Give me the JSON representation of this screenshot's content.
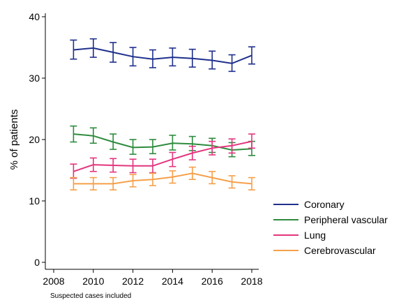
{
  "chart_data": {
    "type": "line",
    "ylabel": "% of patients",
    "xlabel": "",
    "xlim": [
      2008,
      2018
    ],
    "ylim": [
      0,
      40
    ],
    "xticks": [
      2008,
      2010,
      2012,
      2014,
      2016,
      2018
    ],
    "yticks": [
      0,
      10,
      20,
      30,
      40
    ],
    "x": [
      2009,
      2010,
      2011,
      2012,
      2013,
      2014,
      2015,
      2016,
      2017,
      2018
    ],
    "grid": false,
    "legend_position": "right",
    "error_bars": true,
    "series": [
      {
        "name": "Coronary",
        "color": "#1f2f8c",
        "values": [
          34.6,
          34.9,
          34.2,
          33.5,
          33.1,
          33.4,
          33.2,
          32.9,
          32.4,
          33.7
        ],
        "lower": [
          33.1,
          33.4,
          32.6,
          32.0,
          31.7,
          32.0,
          31.8,
          31.5,
          31.1,
          32.3
        ],
        "upper": [
          36.2,
          36.4,
          35.8,
          35.0,
          34.6,
          34.9,
          34.7,
          34.4,
          33.8,
          35.1
        ]
      },
      {
        "name": "Peripheral vascular",
        "color": "#2e8b3e",
        "values": [
          20.9,
          20.6,
          19.6,
          18.7,
          18.8,
          19.4,
          19.3,
          19.0,
          18.3,
          18.5
        ],
        "lower": [
          19.6,
          19.4,
          18.4,
          17.6,
          17.7,
          18.3,
          18.2,
          17.9,
          17.2,
          17.4
        ],
        "upper": [
          22.2,
          21.9,
          20.9,
          20.0,
          20.0,
          20.7,
          20.5,
          20.2,
          19.5,
          19.7
        ]
      },
      {
        "name": "Lung",
        "color": "#e3357d",
        "values": [
          14.8,
          15.9,
          15.8,
          15.7,
          15.7,
          16.8,
          17.8,
          18.6,
          19.0,
          19.7
        ],
        "lower": [
          13.7,
          14.8,
          14.7,
          14.6,
          14.6,
          15.6,
          16.7,
          17.5,
          17.8,
          18.6
        ],
        "upper": [
          16.0,
          17.0,
          16.9,
          16.8,
          16.8,
          17.9,
          18.9,
          19.7,
          20.1,
          20.9
        ]
      },
      {
        "name": "Cerebrovascular",
        "color": "#f5a04a",
        "values": [
          12.8,
          12.8,
          12.8,
          13.3,
          13.5,
          13.9,
          14.5,
          13.8,
          13.1,
          12.8
        ],
        "lower": [
          11.8,
          11.8,
          11.8,
          12.3,
          12.5,
          12.9,
          13.5,
          12.8,
          12.1,
          11.8
        ],
        "upper": [
          13.8,
          13.8,
          13.8,
          14.3,
          14.5,
          14.9,
          15.5,
          14.8,
          14.1,
          13.8
        ]
      }
    ],
    "note": "Suspected cases included"
  }
}
